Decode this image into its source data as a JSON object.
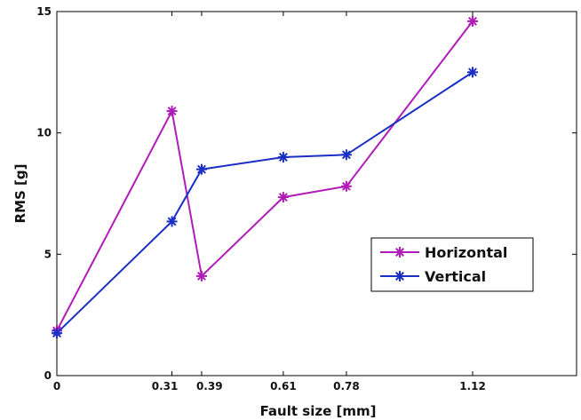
{
  "chart_data": {
    "type": "line",
    "xlabel": "Fault size [mm]",
    "ylabel": "RMS [g]",
    "x": [
      0,
      0.31,
      0.39,
      0.61,
      0.78,
      1.12
    ],
    "x_tick_labels": [
      "0",
      "0.31",
      "0.39",
      "0.61",
      "0.78",
      "1.12"
    ],
    "xlim": [
      0,
      1.4
    ],
    "ylim": [
      0,
      15
    ],
    "y_ticks": [
      0,
      5,
      10,
      15
    ],
    "grid": false,
    "legend_position": "center-right",
    "series": [
      {
        "name": "Horizontal",
        "color": "#b01cb8",
        "marker": "asterisk",
        "values": [
          1.85,
          10.9,
          4.1,
          7.35,
          7.8,
          14.6
        ]
      },
      {
        "name": "Vertical",
        "color": "#1a2fc4",
        "marker": "asterisk",
        "values": [
          1.75,
          6.35,
          8.5,
          9.0,
          9.1,
          12.5
        ]
      }
    ]
  }
}
